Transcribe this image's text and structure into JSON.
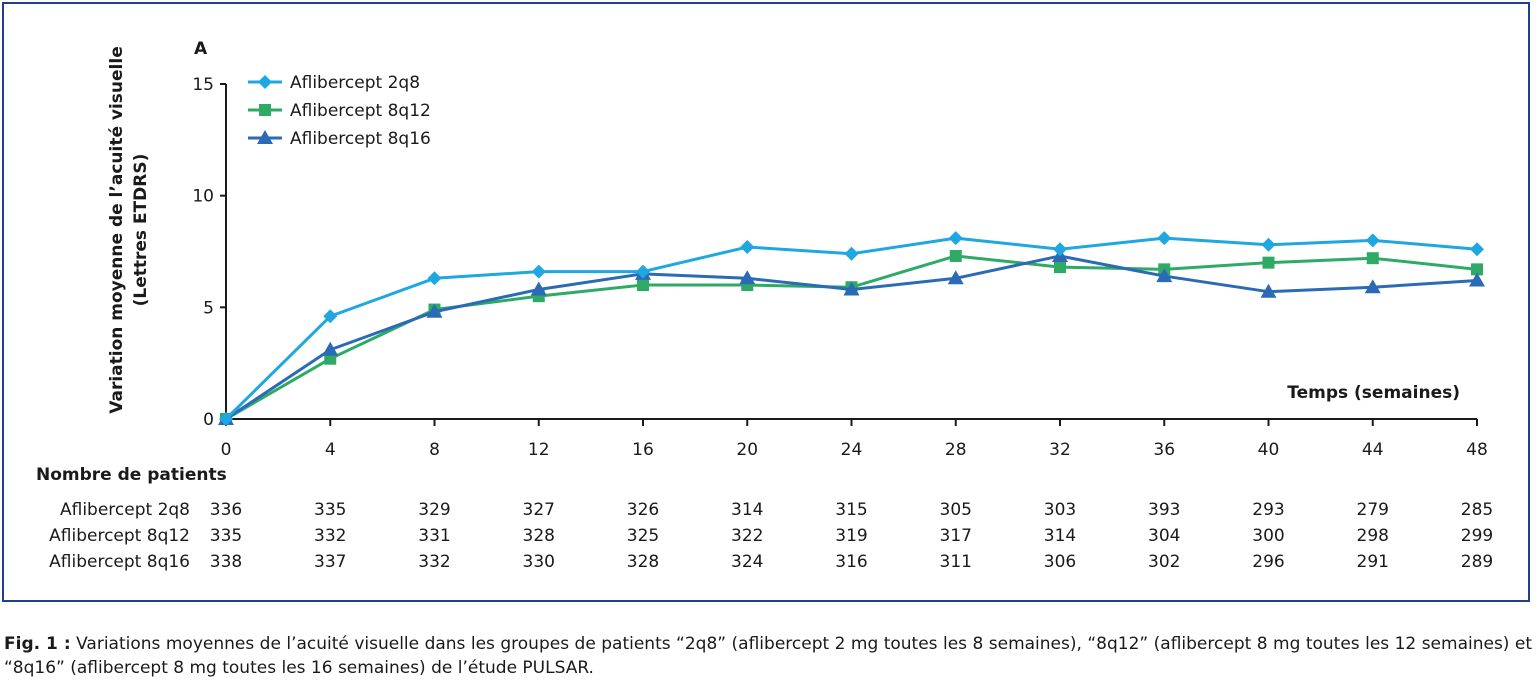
{
  "panel_label": "A",
  "chart_data": {
    "type": "line",
    "ylabel_line1": "Variation moyenne de l’acuité visuelle",
    "ylabel_line2": "(Lettres ETDRS)",
    "xlabel": "Temps (semaines)",
    "x": [
      0,
      4,
      8,
      12,
      16,
      20,
      24,
      28,
      32,
      36,
      40,
      44,
      48
    ],
    "xlim": [
      0,
      48
    ],
    "ylim": [
      0,
      15
    ],
    "yticks": [
      0,
      5,
      10,
      15
    ],
    "grid": false,
    "legend_position": "top-left",
    "series": [
      {
        "name": "Aflibercept 2q8",
        "color": "#1ea7e1",
        "marker": "diamond",
        "values": [
          0,
          4.6,
          6.3,
          6.6,
          6.6,
          7.7,
          7.4,
          8.1,
          7.6,
          8.1,
          7.8,
          8.0,
          7.6
        ]
      },
      {
        "name": "Aflibercept 8q12",
        "color": "#2eaa66",
        "marker": "square",
        "values": [
          0,
          2.7,
          4.9,
          5.5,
          6.0,
          6.0,
          5.9,
          7.3,
          6.8,
          6.7,
          7.0,
          7.2,
          6.7
        ]
      },
      {
        "name": "Aflibercept 8q16",
        "color": "#2b6bb5",
        "marker": "triangle",
        "values": [
          0,
          3.1,
          4.8,
          5.8,
          6.5,
          6.3,
          5.8,
          6.3,
          7.3,
          6.4,
          5.7,
          5.9,
          6.2
        ]
      }
    ]
  },
  "patients_table": {
    "title": "Nombre de patients",
    "rows": [
      {
        "label": "Aflibercept 2q8",
        "values": [
          "336",
          "335",
          "329",
          "327",
          "326",
          "314",
          "315",
          "305",
          "303",
          "393",
          "293",
          "279",
          "285"
        ]
      },
      {
        "label": "Aflibercept 8q12",
        "values": [
          "335",
          "332",
          "331",
          "328",
          "325",
          "322",
          "319",
          "317",
          "314",
          "304",
          "300",
          "298",
          "299"
        ]
      },
      {
        "label": "Aflibercept 8q16",
        "values": [
          "338",
          "337",
          "332",
          "330",
          "328",
          "324",
          "316",
          "311",
          "306",
          "302",
          "296",
          "291",
          "289"
        ]
      }
    ]
  },
  "caption": {
    "prefix": "Fig. 1 :",
    "text": " Variations moyennes de l’acuité visuelle dans les groupes de patients “2q8” (aflibercept 2 mg toutes les 8 semaines), “8q12” (aflibercept 8 mg toutes les 12 semaines) et “8q16” (aflibercept 8 mg toutes les 16 semaines) de l’étude PULSAR."
  }
}
